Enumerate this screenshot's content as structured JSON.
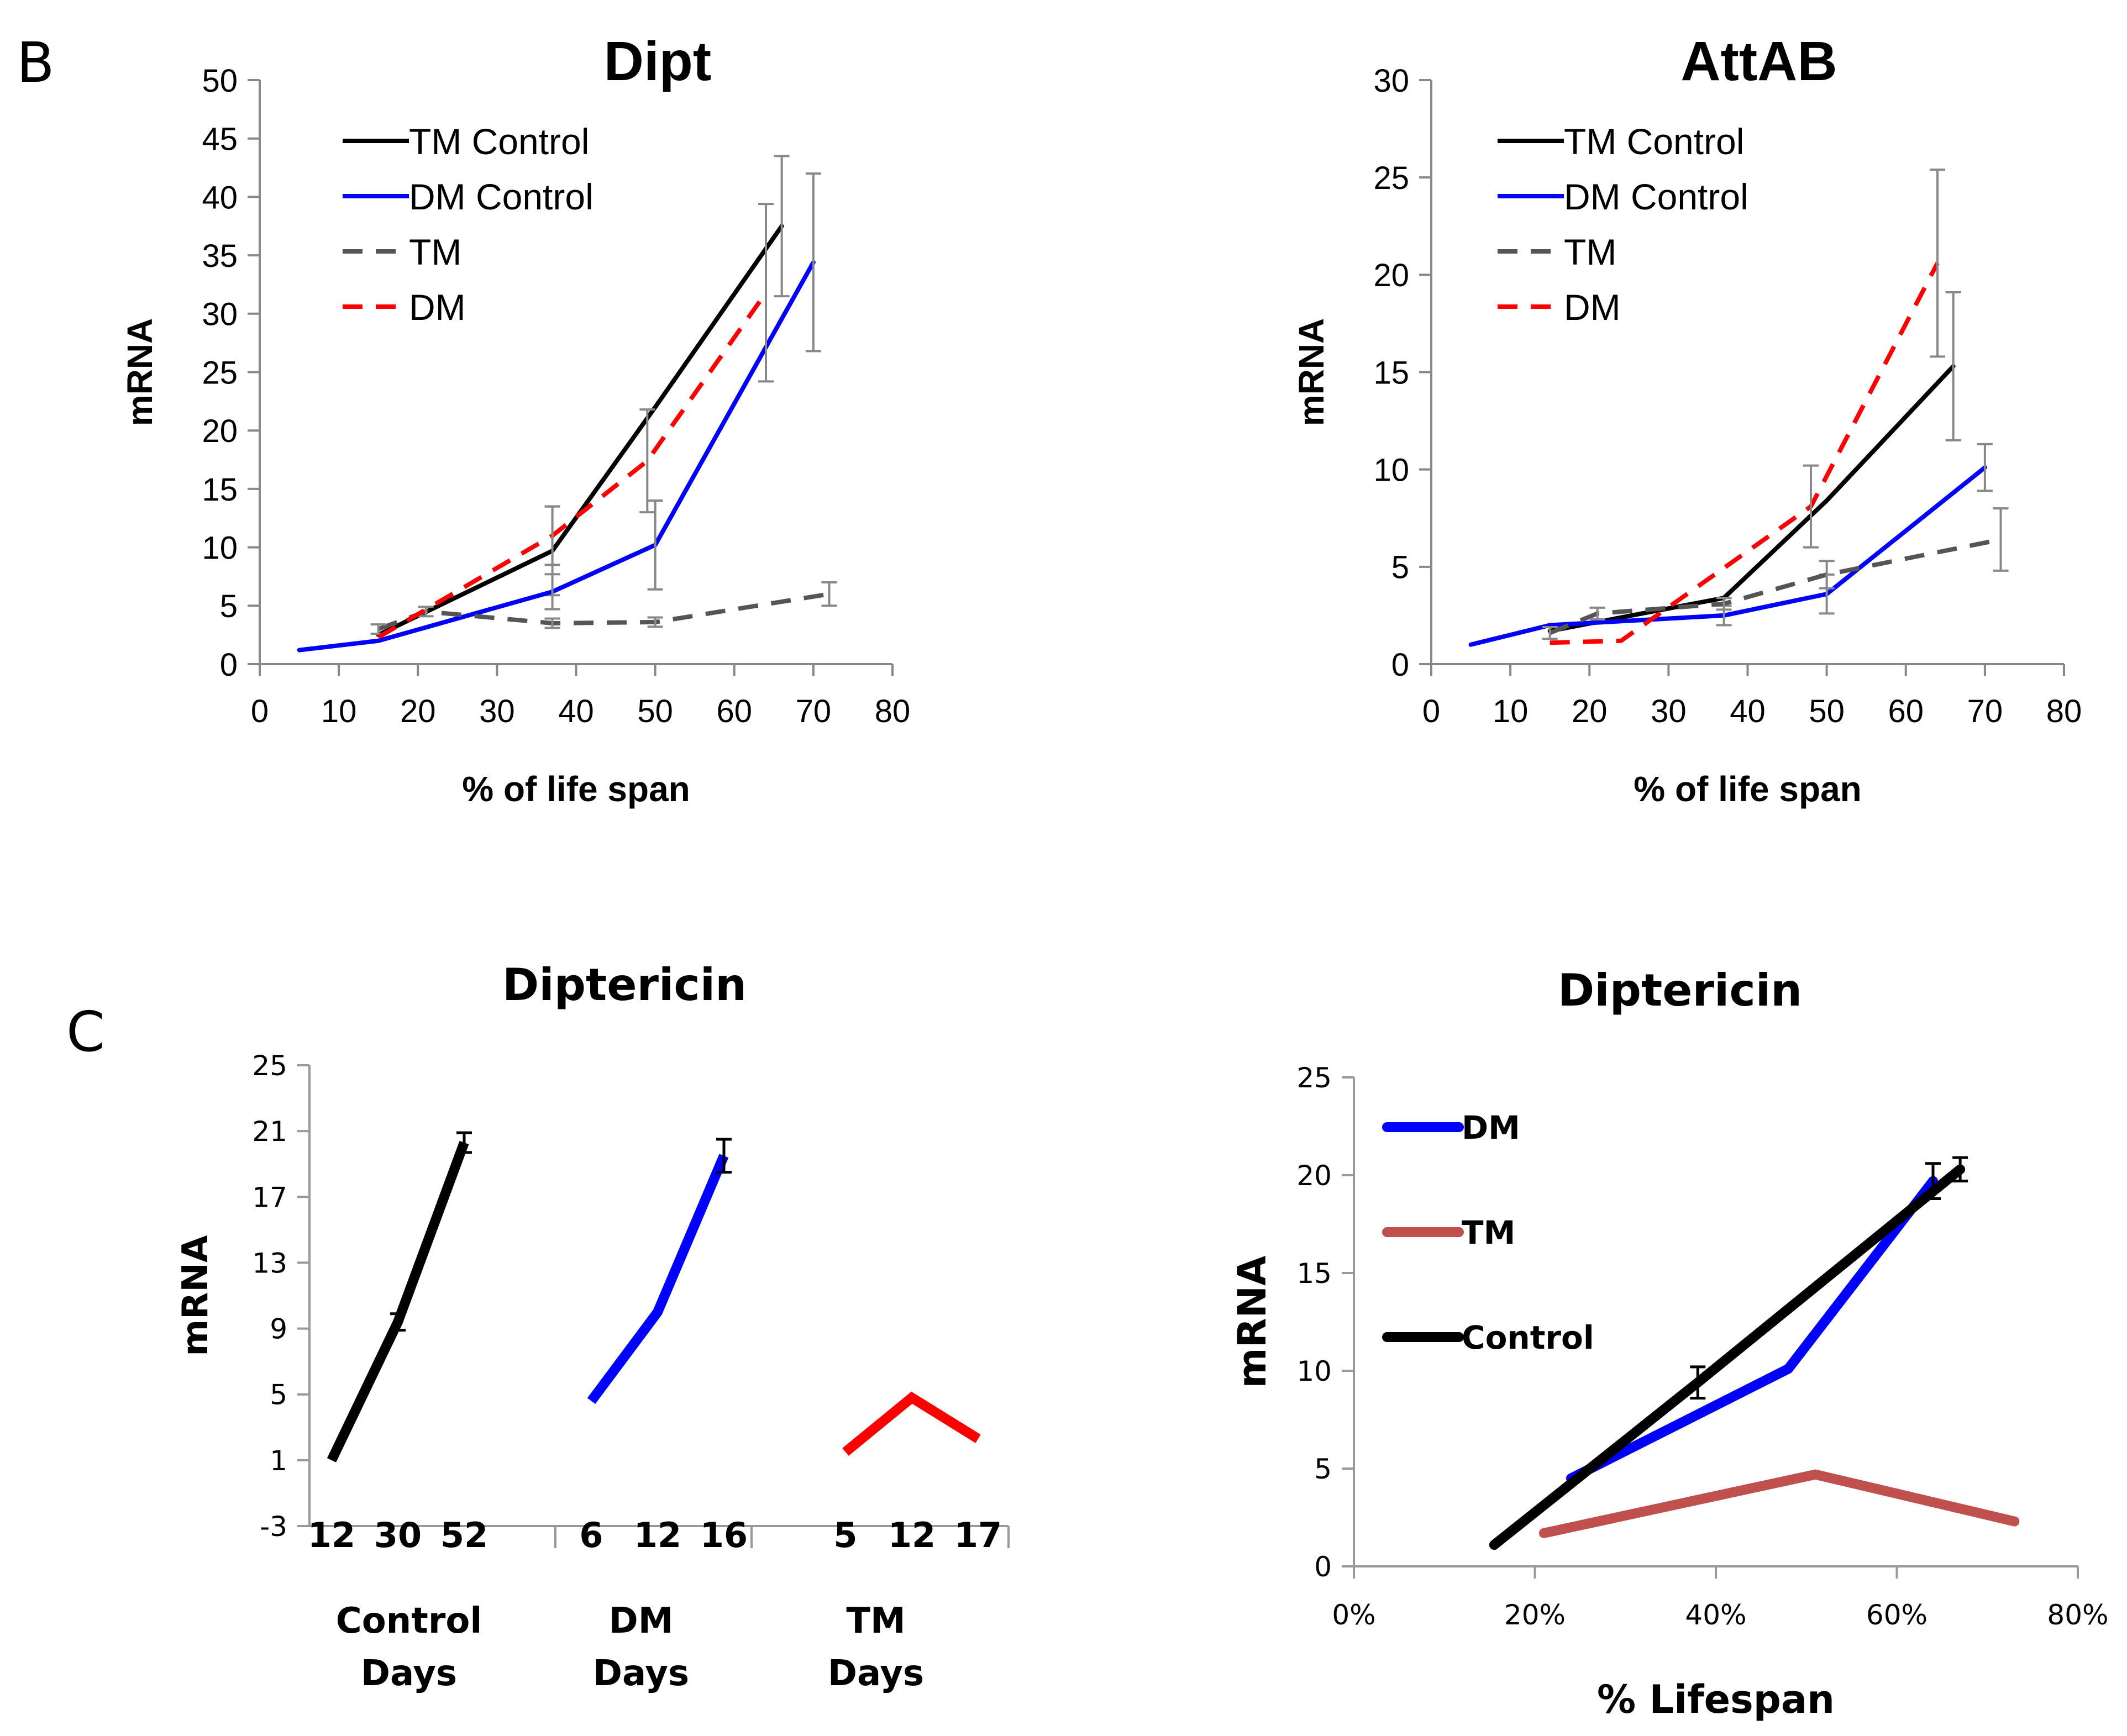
{
  "panel_labels": {
    "b": "B",
    "c": "C"
  },
  "chart_data": [
    {
      "id": "dipt",
      "type": "line",
      "title": "Dipt",
      "xlabel": "% of life span",
      "ylabel": "mRNA",
      "xlim": [
        0,
        80
      ],
      "ylim": [
        0,
        50
      ],
      "xticks": [
        "0",
        "10",
        "20",
        "30",
        "40",
        "50",
        "60",
        "70",
        "80"
      ],
      "yticks": [
        "0",
        "5",
        "10",
        "15",
        "20",
        "25",
        "30",
        "35",
        "40",
        "45",
        "50"
      ],
      "legend_position": "top-left",
      "series": [
        {
          "name": "TM Control",
          "color": "#000000",
          "dash": false,
          "x": [
            15,
            37,
            50,
            66
          ],
          "y": [
            2.5,
            9.7,
            22,
            37.5
          ],
          "err": [
            0,
            3.8,
            0,
            6
          ]
        },
        {
          "name": "DM Control",
          "color": "#0000ff",
          "dash": false,
          "x": [
            5,
            15,
            37,
            50,
            70
          ],
          "y": [
            1.2,
            2,
            6.2,
            10.2,
            34.4
          ],
          "err": [
            0,
            0,
            1.5,
            3.8,
            7.6
          ]
        },
        {
          "name": "TM",
          "color": "#555555",
          "dash": true,
          "x": [
            15,
            21,
            37,
            50,
            72
          ],
          "y": [
            3,
            4.5,
            3.5,
            3.6,
            6
          ],
          "err": [
            0.4,
            0.4,
            0.4,
            0.4,
            1
          ]
        },
        {
          "name": "DM",
          "color": "#ff0000",
          "dash": true,
          "x": [
            15,
            37,
            49,
            64
          ],
          "y": [
            2.3,
            11,
            17.4,
            31.8
          ],
          "err": [
            0,
            2.5,
            4.4,
            7.6
          ]
        }
      ]
    },
    {
      "id": "attab",
      "type": "line",
      "title": "AttAB",
      "xlabel": "% of life span",
      "ylabel": "mRNA",
      "xlim": [
        0,
        80
      ],
      "ylim": [
        0,
        30
      ],
      "xticks": [
        "0",
        "10",
        "20",
        "30",
        "40",
        "50",
        "60",
        "70",
        "80"
      ],
      "yticks": [
        "0",
        "5",
        "10",
        "15",
        "20",
        "25",
        "30"
      ],
      "legend_position": "top-left",
      "series": [
        {
          "name": "TM Control",
          "color": "#000000",
          "dash": false,
          "x": [
            15,
            37,
            50,
            66
          ],
          "y": [
            1.7,
            3.4,
            8.4,
            15.3
          ],
          "err": [
            0,
            0,
            0,
            3.8
          ]
        },
        {
          "name": "DM Control",
          "color": "#0000ff",
          "dash": false,
          "x": [
            5,
            15,
            37,
            50,
            70
          ],
          "y": [
            1,
            2,
            2.5,
            3.6,
            10.1
          ],
          "err": [
            0,
            0,
            0.5,
            1,
            1.2
          ]
        },
        {
          "name": "TM",
          "color": "#555555",
          "dash": true,
          "x": [
            15,
            21,
            37,
            50,
            72
          ],
          "y": [
            1.6,
            2.6,
            3.1,
            4.6,
            6.4
          ],
          "err": [
            0.3,
            0.3,
            0.3,
            0.7,
            1.6
          ]
        },
        {
          "name": "DM",
          "color": "#ff0000",
          "dash": true,
          "x": [
            15,
            24,
            48,
            64
          ],
          "y": [
            1.1,
            1.2,
            8.1,
            20.6
          ],
          "err": [
            0,
            0,
            2.1,
            4.8
          ]
        }
      ]
    },
    {
      "id": "diptericin-days",
      "type": "line",
      "title": "Diptericin",
      "ylabel": "mRNA",
      "ylim": [
        -3,
        25
      ],
      "yticks": [
        "25",
        "21",
        "17",
        "13",
        "9",
        "5",
        "1",
        "-3"
      ],
      "groups": [
        {
          "name": "Control",
          "color": "#000000",
          "ticks": [
            "12",
            "30",
            "52"
          ],
          "label_top": "Control",
          "label_bottom": "Days",
          "y": [
            1,
            9.4,
            20.3
          ],
          "err": [
            0,
            0.5,
            0.6
          ]
        },
        {
          "name": "DM",
          "color": "#0000ff",
          "ticks": [
            "6",
            "12",
            "16"
          ],
          "label_top": "DM",
          "label_bottom": "Days",
          "y": [
            4.6,
            10,
            19.5
          ],
          "err": [
            0,
            0,
            1
          ]
        },
        {
          "name": "TM",
          "color": "#ff0000",
          "ticks": [
            "5",
            "12",
            "17"
          ],
          "label_top": "TM",
          "label_bottom": "Days",
          "y": [
            1.5,
            4.8,
            2.3
          ],
          "err": [
            0,
            0,
            0
          ]
        }
      ]
    },
    {
      "id": "diptericin-lifespan",
      "type": "line",
      "title": "Diptericin",
      "xlabel": "% Lifespan",
      "ylabel": "mRNA",
      "xlim": [
        0,
        80
      ],
      "ylim": [
        0,
        25
      ],
      "xticks": [
        "0%",
        "20%",
        "40%",
        "60%",
        "80%"
      ],
      "yticks": [
        "0",
        "5",
        "10",
        "15",
        "20",
        "25"
      ],
      "legend_position": "top-left",
      "series": [
        {
          "name": "DM",
          "color": "#0000ff",
          "x": [
            24,
            48,
            64
          ],
          "y": [
            4.5,
            10.1,
            19.7
          ],
          "err": [
            0,
            0,
            0.9
          ]
        },
        {
          "name": "TM",
          "color": "#c0504d",
          "x": [
            21,
            51,
            73
          ],
          "y": [
            1.7,
            4.7,
            2.3
          ],
          "err": [
            0,
            0,
            0
          ]
        },
        {
          "name": "Control",
          "color": "#000000",
          "x": [
            15.5,
            38,
            67
          ],
          "y": [
            1.1,
            9.4,
            20.3
          ],
          "err": [
            0,
            0.8,
            0.6
          ]
        }
      ]
    }
  ]
}
